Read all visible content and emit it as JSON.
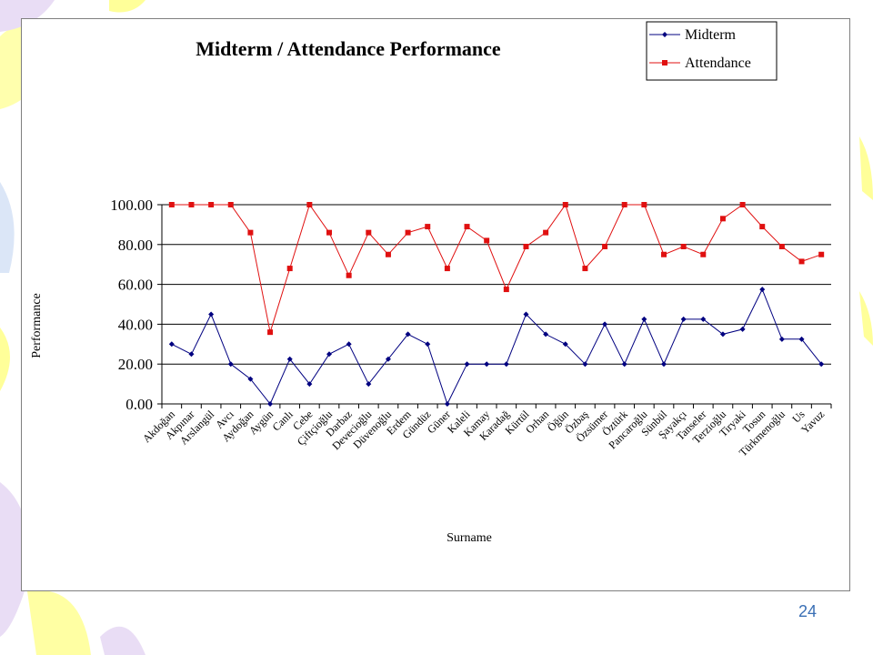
{
  "slide": {
    "page_number": "24"
  },
  "colors": {
    "midterm": "#000080",
    "attendance": "#e01010",
    "page_number": "#3a6fb5",
    "decor_yellow": "#ffff99",
    "decor_purple": "#e9ddf5",
    "decor_blue": "#dbe6f7"
  },
  "chart_data": {
    "type": "line",
    "title": "Midterm / Attendance Performance",
    "xlabel": "Surname",
    "ylabel": "Performance",
    "ylim": [
      0,
      100
    ],
    "yticks": [
      "0.00",
      "20.00",
      "40.00",
      "60.00",
      "80.00",
      "100.00"
    ],
    "grid": true,
    "legend_position": "top-right",
    "categories": [
      "Akdoğan",
      "Akpınar",
      "Arslangül",
      "Avcı",
      "Aydoğan",
      "Aygün",
      "Canlı",
      "Cebe",
      "Çiftçioğlu",
      "Darbaz",
      "Devecioğlu",
      "Düvenoğlu",
      "Erdem",
      "Gündüz",
      "Güner",
      "Kaleli",
      "Kamay",
      "Karadağ",
      "Kürtül",
      "Orhan",
      "Öğün",
      "Özbaş",
      "Özsümer",
      "Öztürk",
      "Pancaroğlu",
      "Sünbül",
      "Şayakçı",
      "Tanseler",
      "Terzioğlu",
      "Tiryaki",
      "Tosun",
      "Türkmenoğlu",
      "Us",
      "Yavuz"
    ],
    "series": [
      {
        "name": "Midterm",
        "marker": "diamond",
        "values": [
          30,
          25,
          45,
          20,
          12.5,
          0,
          22.5,
          10,
          25,
          30,
          10,
          22.5,
          35,
          30,
          0,
          20,
          20,
          20,
          45,
          35,
          30,
          20,
          40,
          20,
          42.5,
          20,
          42.5,
          42.5,
          35,
          37.5,
          57.5,
          32.5,
          32.5,
          20
        ]
      },
      {
        "name": "Attendance",
        "marker": "square",
        "values": [
          100,
          100,
          100,
          100,
          86,
          36,
          68,
          100,
          86,
          64.5,
          86,
          75,
          86,
          89,
          68,
          89,
          82,
          57.5,
          79,
          86,
          100,
          68,
          79,
          100,
          100,
          75,
          79,
          75,
          93,
          100,
          89,
          79,
          71.5,
          75
        ]
      }
    ]
  }
}
